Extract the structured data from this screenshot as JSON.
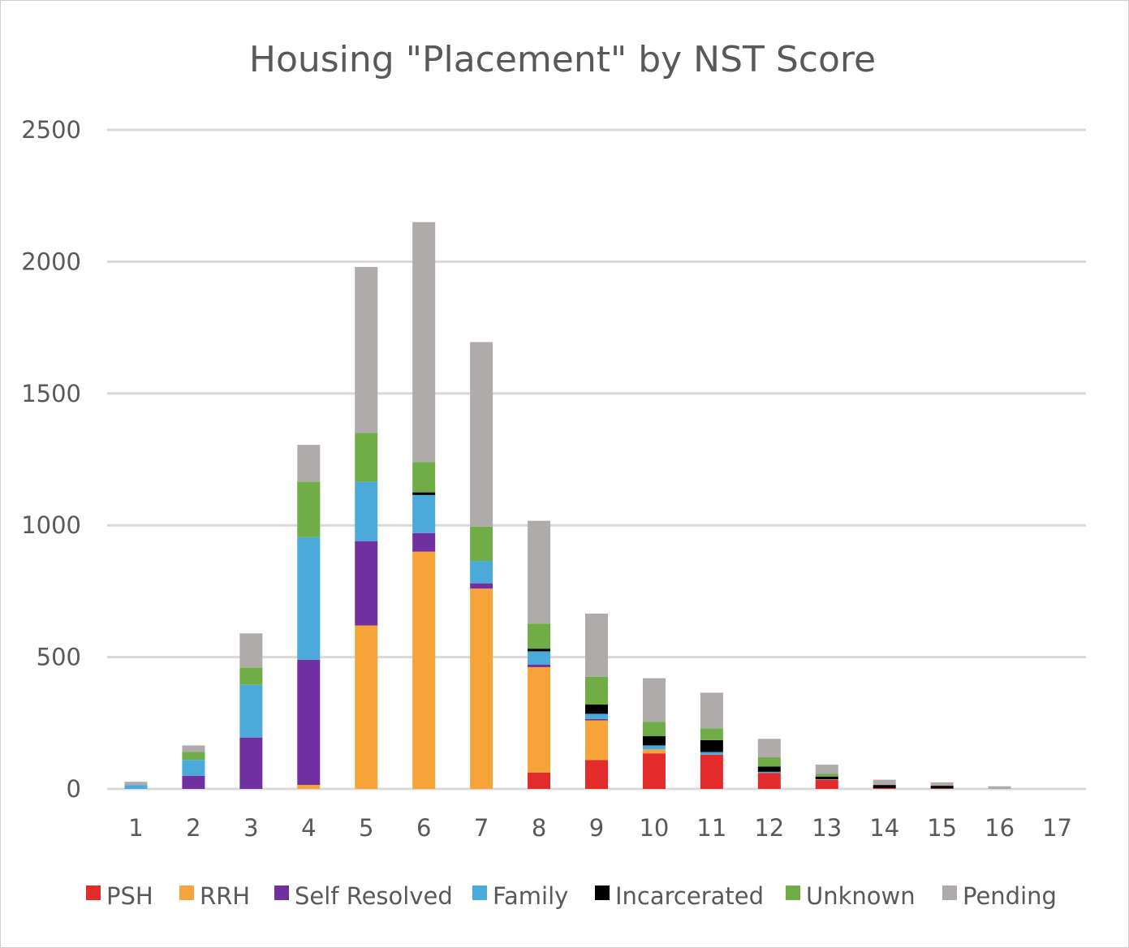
{
  "chart_data": {
    "type": "bar",
    "stacked": true,
    "title": "Housing \"Placement\" by NST Score",
    "xlabel": "",
    "ylabel": "",
    "ylim": [
      0,
      2500
    ],
    "yticks": [
      0,
      500,
      1000,
      1500,
      2000,
      2500
    ],
    "grid": true,
    "legend_position": "bottom",
    "categories": [
      "1",
      "2",
      "3",
      "4",
      "5",
      "6",
      "7",
      "8",
      "9",
      "10",
      "11",
      "12",
      "13",
      "14",
      "15",
      "16",
      "17"
    ],
    "series": [
      {
        "name": "PSH",
        "color": "#e32b2b",
        "values": [
          0,
          0,
          0,
          0,
          0,
          0,
          0,
          62,
          110,
          135,
          130,
          60,
          35,
          3,
          2,
          0,
          0
        ]
      },
      {
        "name": "RRH",
        "color": "#f6a43a",
        "values": [
          0,
          0,
          0,
          15,
          620,
          900,
          760,
          400,
          150,
          15,
          0,
          0,
          0,
          0,
          0,
          0,
          0
        ]
      },
      {
        "name": "Self Resolved",
        "color": "#7030a0",
        "values": [
          0,
          50,
          195,
          475,
          320,
          70,
          20,
          10,
          5,
          0,
          0,
          0,
          0,
          0,
          0,
          0,
          0
        ]
      },
      {
        "name": "Family",
        "color": "#4baad9",
        "values": [
          15,
          60,
          200,
          465,
          225,
          145,
          85,
          50,
          20,
          15,
          10,
          5,
          2,
          0,
          0,
          0,
          0
        ]
      },
      {
        "name": "Incarcerated",
        "color": "#000000",
        "values": [
          0,
          0,
          0,
          0,
          0,
          10,
          0,
          10,
          35,
          35,
          45,
          20,
          10,
          12,
          10,
          0,
          0
        ]
      },
      {
        "name": "Unknown",
        "color": "#70ad47",
        "values": [
          0,
          30,
          65,
          210,
          185,
          115,
          130,
          95,
          105,
          55,
          45,
          35,
          10,
          0,
          0,
          0,
          0
        ]
      },
      {
        "name": "Pending",
        "color": "#afabab",
        "values": [
          12,
          25,
          130,
          140,
          630,
          910,
          700,
          390,
          240,
          165,
          135,
          70,
          35,
          20,
          13,
          10,
          0
        ]
      }
    ]
  }
}
